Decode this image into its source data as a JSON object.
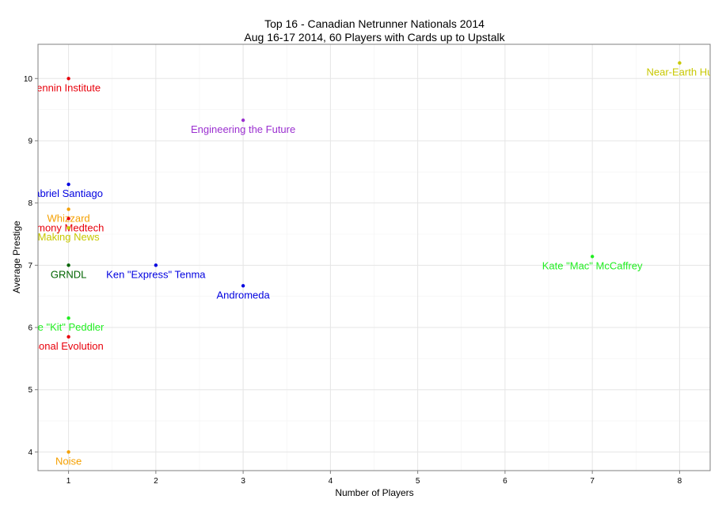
{
  "chart_data": {
    "type": "scatter",
    "title": "Top 16 - Canadian Netrunner Nationals 2014",
    "subtitle": "Aug 16-17 2014, 60 Players with Cards up to Upstalk",
    "xlabel": "Number of Players",
    "ylabel": "Average Prestige",
    "xlim": [
      0.65,
      8.35
    ],
    "ylim": [
      3.7,
      10.55
    ],
    "x_ticks": [
      1,
      2,
      3,
      4,
      5,
      6,
      7,
      8
    ],
    "y_ticks": [
      4,
      5,
      6,
      7,
      8,
      9,
      10
    ],
    "grid": true,
    "legend": "none",
    "points": [
      {
        "label": "Jinteki: Replicating Perfection / Jinteki: Pannin Institute",
        "text": "ennin Institute",
        "x": 1,
        "y": 10.0,
        "color": "#e8000b"
      },
      {
        "label": "Engineering the Future",
        "text": "Engineering the Future",
        "x": 3,
        "y": 9.33,
        "color": "#9b30d0"
      },
      {
        "label": "Near-Earth Hub",
        "text": "Near-Earth Hu",
        "x": 8,
        "y": 10.25,
        "color": "#c8c800"
      },
      {
        "label": "Gabriel Santiago",
        "text": "abriel Santiago",
        "x": 1,
        "y": 8.3,
        "color": "#0000e0"
      },
      {
        "label": "Whizzard",
        "text": "Whizzard",
        "x": 1,
        "y": 7.9,
        "color": "#f5a000"
      },
      {
        "label": "Harmony Medtech",
        "text": "rmony Medtech",
        "x": 1,
        "y": 7.75,
        "color": "#e8000b"
      },
      {
        "label": "Making News",
        "text": "Making News",
        "x": 1,
        "y": 7.6,
        "color": "#c8c800"
      },
      {
        "label": "GRNDL",
        "text": "GRNDL",
        "x": 1,
        "y": 7.0,
        "color": "#006400"
      },
      {
        "label": "Ken \"Express\" Tenma",
        "text": "Ken \"Express\" Tenma",
        "x": 2,
        "y": 7.0,
        "color": "#0000e0"
      },
      {
        "label": "Andromeda",
        "text": "Andromeda",
        "x": 3,
        "y": 6.67,
        "color": "#0000e0"
      },
      {
        "label": "Kate \"Mac\" McCaffrey",
        "text": "Kate \"Mac\" McCaffrey",
        "x": 7,
        "y": 7.14,
        "color": "#22ee22"
      },
      {
        "label": "Rielle \"Kit\" Peddler",
        "text": "lle \"Kit\" Peddler",
        "x": 1,
        "y": 6.15,
        "color": "#22ee22"
      },
      {
        "label": "Personal Evolution",
        "text": "sonal Evolution",
        "x": 1,
        "y": 5.85,
        "color": "#e8000b"
      },
      {
        "label": "Noise",
        "text": "Noise",
        "x": 1,
        "y": 4.0,
        "color": "#f5a000"
      }
    ]
  }
}
